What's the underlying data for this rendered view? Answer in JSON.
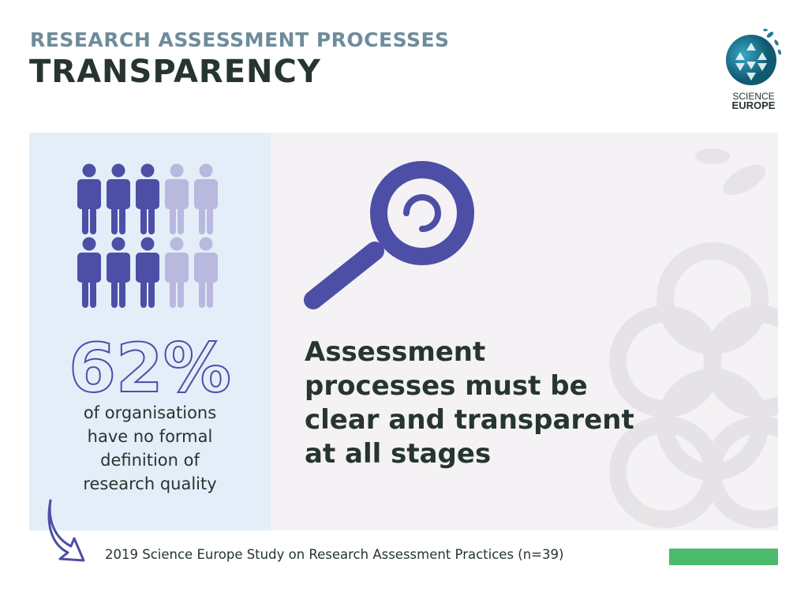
{
  "header": {
    "subtitle": "RESEARCH ASSESSMENT PROCESSES",
    "title": "TRANSPARENCY"
  },
  "logo": {
    "line1": "SCIENCE",
    "line2": "EUROPE",
    "icon": "science-europe-globe-logo"
  },
  "stat": {
    "value": "62%",
    "fraction_highlighted": 0.62,
    "caption_lines": [
      "of organisations",
      "have no formal",
      "definition of",
      "research quality"
    ],
    "icon": "people-pictogram"
  },
  "statement": {
    "lines": [
      "Assessment",
      "processes must be",
      "clear and transparent",
      "at all stages"
    ],
    "icon": "magnifying-glass-icon"
  },
  "footer": {
    "source": "2019 Science Europe Study on Research Assessment Practices (n=39)"
  },
  "colors": {
    "accent": "#4d4ea5",
    "accent_light": "#b9b8de",
    "green": "#4cba6b",
    "title": "#263530",
    "subtitle": "#6e8c9b",
    "left_panel": "#e3eef8",
    "right_panel": "#f4f2f4"
  }
}
